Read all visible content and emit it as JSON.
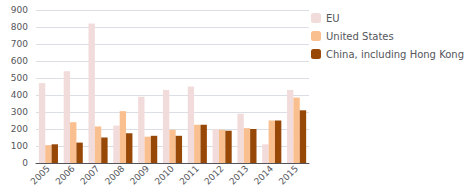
{
  "chart_data": {
    "type": "bar",
    "categories": [
      "2005",
      "2006",
      "2007",
      "2008",
      "2009",
      "2010",
      "2011",
      "2012",
      "2013",
      "2014",
      "2015"
    ],
    "series": [
      {
        "name": "EU",
        "color": "#f2dcdb",
        "values": [
          470,
          540,
          820,
          220,
          390,
          430,
          450,
          200,
          290,
          110,
          430
        ]
      },
      {
        "name": "United States",
        "color": "#fabf8f",
        "values": [
          105,
          240,
          215,
          305,
          155,
          195,
          225,
          195,
          205,
          250,
          385
        ]
      },
      {
        "name": "China, including Hong Kong",
        "color": "#974706",
        "values": [
          110,
          120,
          150,
          175,
          160,
          160,
          225,
          190,
          200,
          250,
          310
        ]
      }
    ],
    "ylim": [
      0,
      900
    ],
    "yticks": [
      0,
      100,
      200,
      300,
      400,
      500,
      600,
      700,
      800,
      900
    ],
    "grid": true,
    "legend": "right"
  }
}
